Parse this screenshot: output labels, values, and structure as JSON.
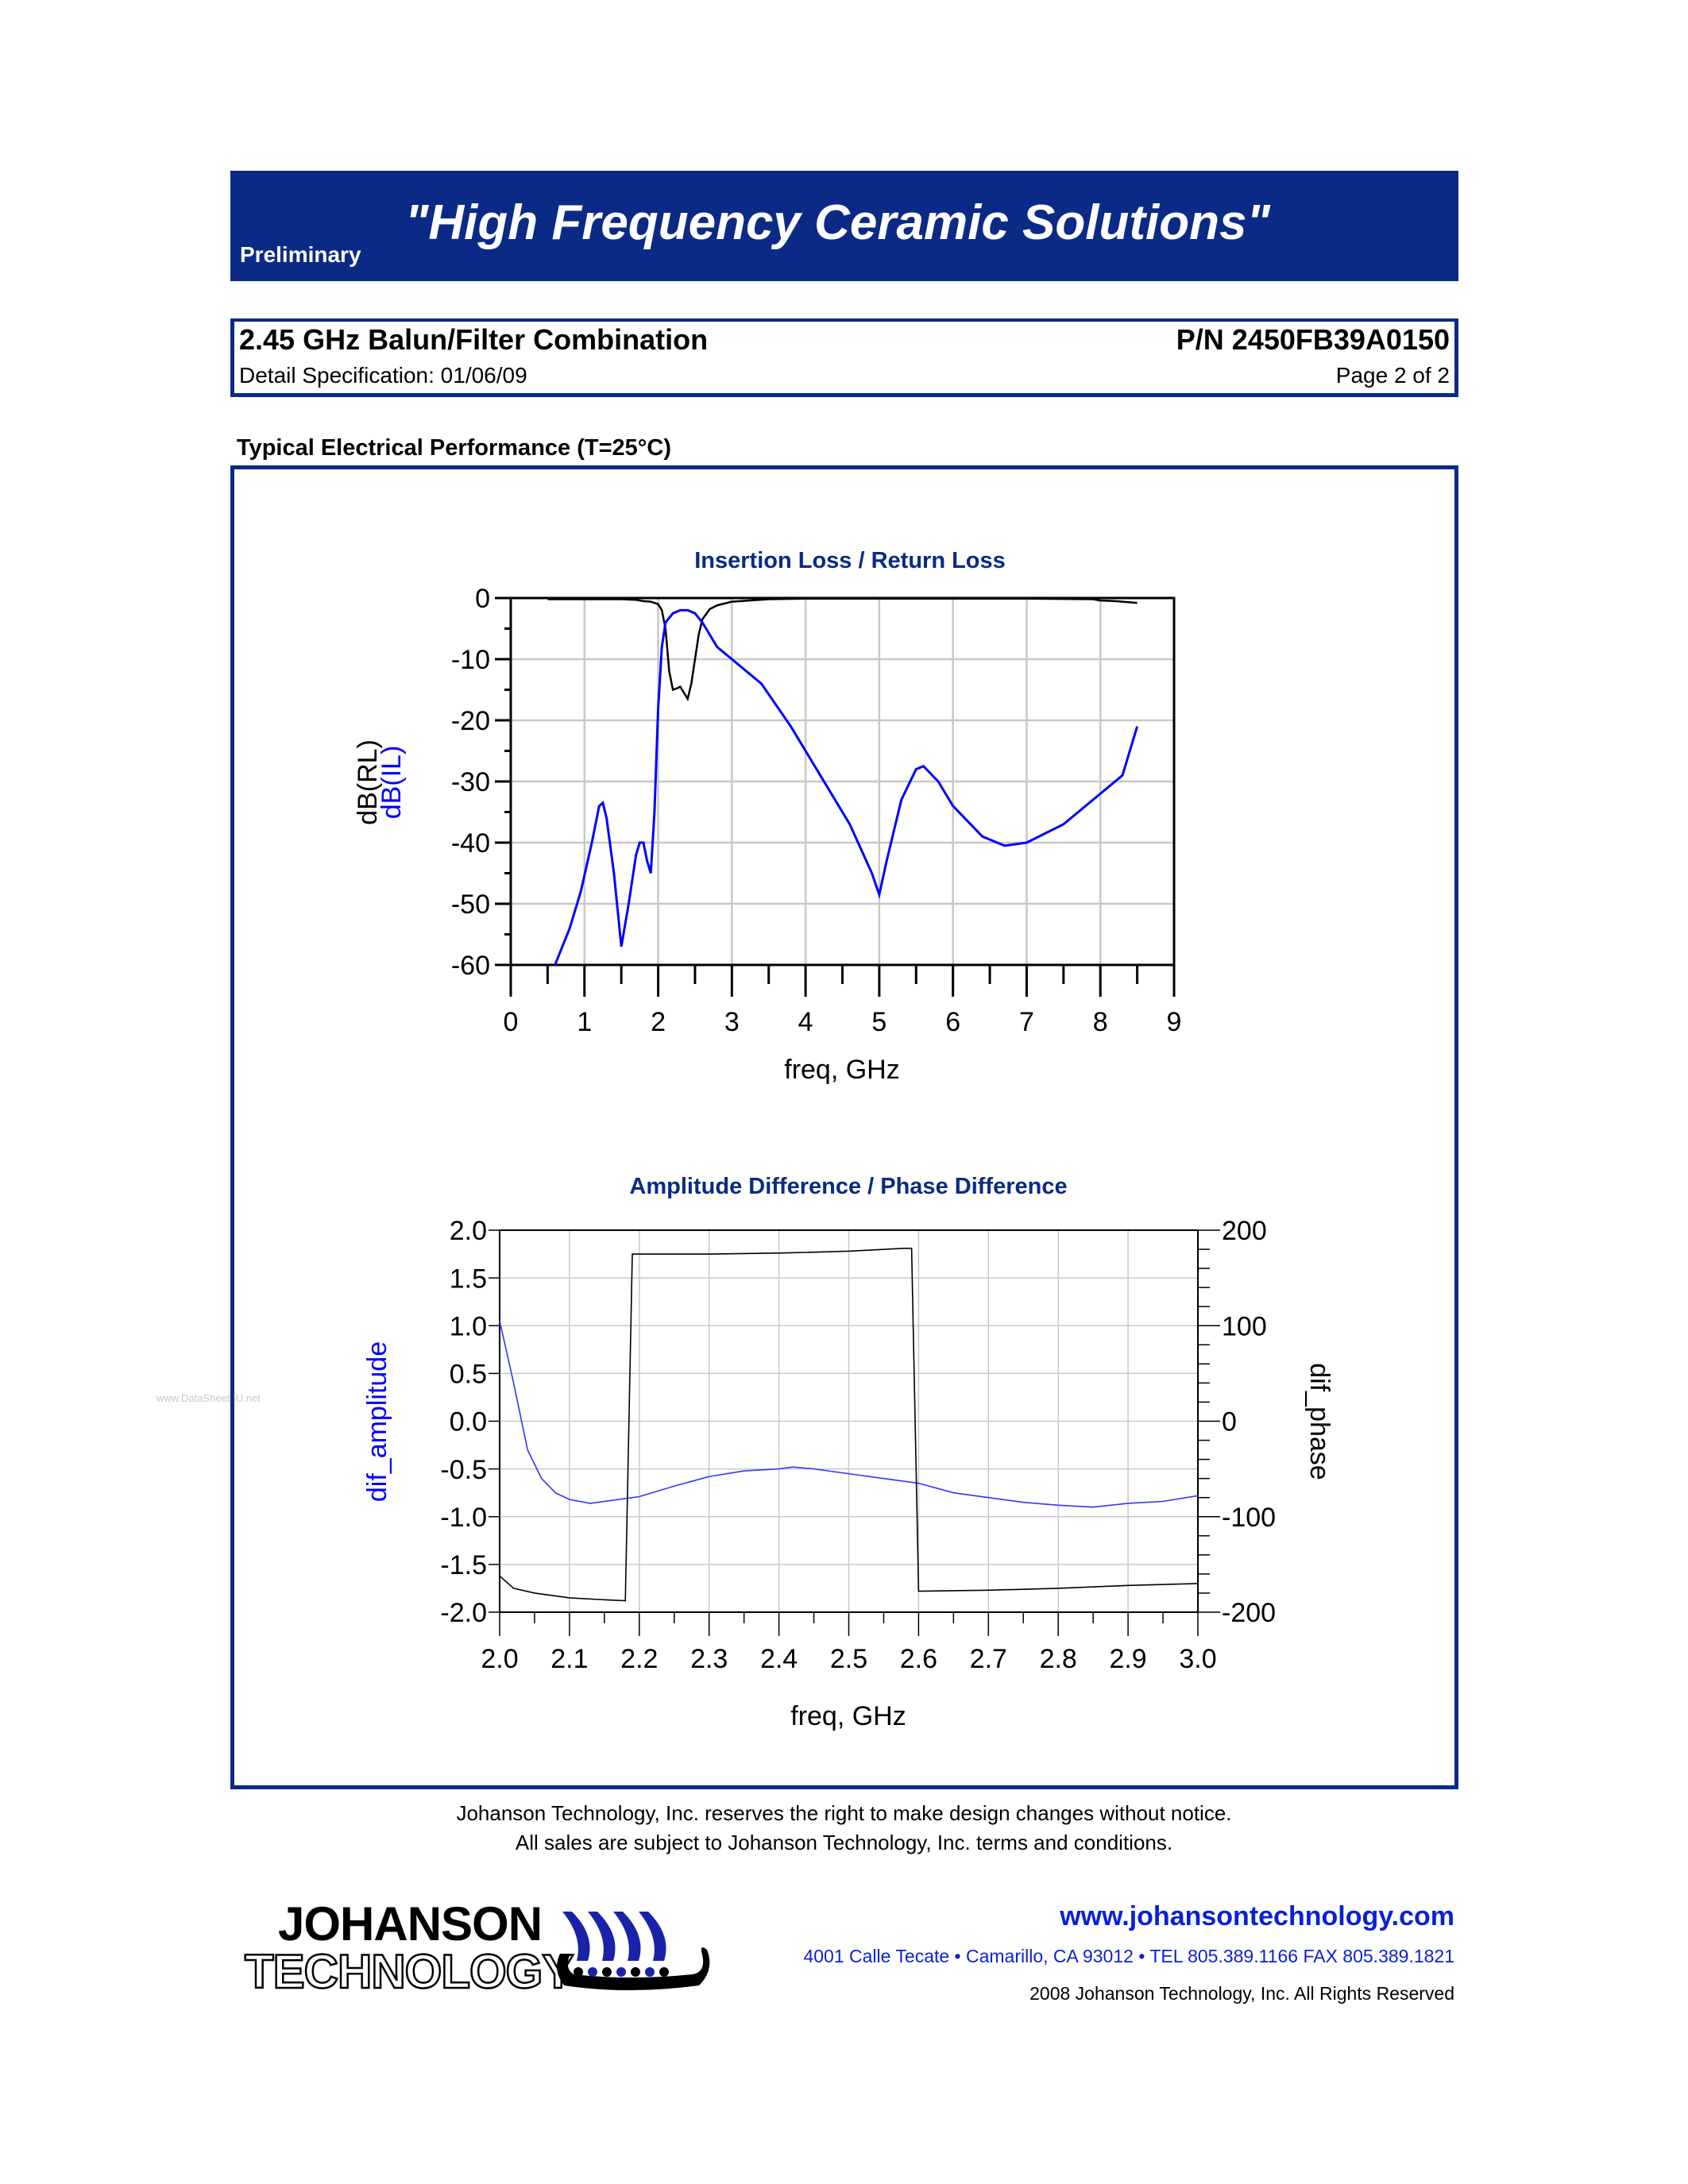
{
  "header": {
    "status": "Preliminary",
    "slogan": "\"High Frequency Ceramic Solutions\"",
    "banner_color": "#0a2a85"
  },
  "titlebox": {
    "product": "2.45 GHz Balun/Filter Combination",
    "part_number": "P/N 2450FB39A0150",
    "spec": "Detail Specification:   01/06/09",
    "page": "Page 2 of 2"
  },
  "section_title": "Typical Electrical Performance (T=25°C)",
  "watermark": "www.DataSheet4U.net",
  "chart_data": [
    {
      "type": "line",
      "title": "Insertion Loss / Return Loss",
      "xlabel": "freq, GHz",
      "ylabel": [
        "dB(RL)",
        "dB(IL)"
      ],
      "xlim": [
        0,
        9
      ],
      "ylim": [
        -60,
        0
      ],
      "x_ticks": [
        "0",
        "1",
        "2",
        "3",
        "4",
        "5",
        "6",
        "7",
        "8",
        "9"
      ],
      "y_ticks": [
        "0",
        "-10",
        "-20",
        "-30",
        "-40",
        "-50",
        "-60"
      ],
      "grid": true,
      "series": [
        {
          "name": "dB(RL)",
          "color": "#000000",
          "x": [
            0.5,
            1.5,
            1.7,
            1.8,
            1.9,
            2.0,
            2.05,
            2.1,
            2.15,
            2.2,
            2.25,
            2.3,
            2.35,
            2.4,
            2.45,
            2.5,
            2.55,
            2.6,
            2.7,
            2.8,
            3.0,
            3.5,
            4.0,
            5.0,
            6.0,
            7.0,
            7.9,
            8.0,
            8.2,
            8.5
          ],
          "y": [
            -0.2,
            -0.2,
            -0.3,
            -0.5,
            -0.6,
            -1.0,
            -2.0,
            -5.0,
            -12.0,
            -15.0,
            -14.8,
            -14.5,
            -15.5,
            -16.5,
            -14.0,
            -10.0,
            -6.0,
            -3.5,
            -1.8,
            -1.2,
            -0.6,
            -0.2,
            -0.1,
            -0.1,
            -0.1,
            -0.1,
            -0.2,
            -0.4,
            -0.5,
            -0.8
          ]
        },
        {
          "name": "dB(IL)",
          "color": "#0000ff",
          "x": [
            0.6,
            0.8,
            0.95,
            1.1,
            1.2,
            1.25,
            1.3,
            1.4,
            1.5,
            1.6,
            1.7,
            1.75,
            1.8,
            1.85,
            1.9,
            1.95,
            2.0,
            2.05,
            2.1,
            2.2,
            2.3,
            2.4,
            2.5,
            2.6,
            2.8,
            3.0,
            3.4,
            3.8,
            4.2,
            4.6,
            4.9,
            5.0,
            5.1,
            5.3,
            5.5,
            5.6,
            5.8,
            6.0,
            6.4,
            6.7,
            7.0,
            7.5,
            8.0,
            8.3,
            8.5
          ],
          "y": [
            -60,
            -54,
            -48,
            -40,
            -34,
            -33.5,
            -36,
            -45,
            -57,
            -50,
            -42,
            -40,
            -40,
            -43,
            -45,
            -35,
            -18,
            -8,
            -4,
            -2.5,
            -2,
            -2,
            -2.5,
            -4,
            -8,
            -10,
            -14,
            -21,
            -29,
            -37,
            -45,
            -48.5,
            -43,
            -33,
            -28,
            -27.5,
            -30,
            -34,
            -39,
            -40.5,
            -40,
            -37,
            -32,
            -29,
            -21
          ]
        }
      ]
    },
    {
      "type": "line",
      "title": "Amplitude Difference / Phase Difference",
      "xlabel": "freq, GHz",
      "ylabel": "dif_amplitude",
      "ylabel_right": "dif_phase",
      "xlim": [
        2.0,
        3.0
      ],
      "ylim": [
        -2.0,
        2.0
      ],
      "ylim_right": [
        -200,
        200
      ],
      "x_ticks": [
        "2.0",
        "2.1",
        "2.2",
        "2.3",
        "2.4",
        "2.5",
        "2.6",
        "2.7",
        "2.8",
        "2.9",
        "3.0"
      ],
      "y_ticks": [
        "2.0",
        "1.5",
        "1.0",
        "0.5",
        "0.0",
        "-0.5",
        "-1.0",
        "-1.5",
        "-2.0"
      ],
      "y_ticks_right": [
        "200",
        "100",
        "0",
        "-100",
        "-200"
      ],
      "grid": true,
      "series": [
        {
          "name": "dif_amplitude",
          "axis": "left",
          "color": "#3333ff",
          "x": [
            2.0,
            2.02,
            2.04,
            2.06,
            2.08,
            2.1,
            2.13,
            2.16,
            2.2,
            2.25,
            2.3,
            2.35,
            2.4,
            2.42,
            2.45,
            2.5,
            2.55,
            2.6,
            2.65,
            2.7,
            2.75,
            2.8,
            2.85,
            2.9,
            2.95,
            3.0
          ],
          "y": [
            1.05,
            0.4,
            -0.3,
            -0.6,
            -0.75,
            -0.82,
            -0.86,
            -0.83,
            -0.79,
            -0.68,
            -0.58,
            -0.52,
            -0.5,
            -0.48,
            -0.5,
            -0.55,
            -0.6,
            -0.65,
            -0.75,
            -0.8,
            -0.85,
            -0.88,
            -0.9,
            -0.86,
            -0.84,
            -0.78
          ]
        },
        {
          "name": "dif_phase",
          "axis": "right",
          "color": "#000000",
          "x": [
            2.0,
            2.02,
            2.05,
            2.1,
            2.15,
            2.18,
            2.19,
            2.2,
            2.3,
            2.4,
            2.5,
            2.58,
            2.59,
            2.6,
            2.7,
            2.8,
            2.9,
            3.0
          ],
          "y": [
            -162,
            -175,
            -180,
            -185,
            -187,
            -188,
            175,
            175,
            175,
            176,
            178,
            181,
            181,
            -178,
            -177,
            -175,
            -172,
            -170
          ]
        }
      ]
    }
  ],
  "footer": {
    "notice_1": "Johanson Technology, Inc. reserves the right to make design changes without notice.",
    "notice_2": "All sales are subject to Johanson Technology, Inc. terms and conditions.",
    "logo_line1": "JOHANSON",
    "logo_line2": "TECHNOLOGY",
    "website": "www.johansontechnology.com",
    "address": "4001 Calle Tecate • Camarillo, CA 93012 • TEL 805.389.1166 FAX 805.389.1821",
    "copyright": "2008 Johanson Technology, Inc.  All Rights Reserved",
    "link_color": "#0a1fd6"
  }
}
